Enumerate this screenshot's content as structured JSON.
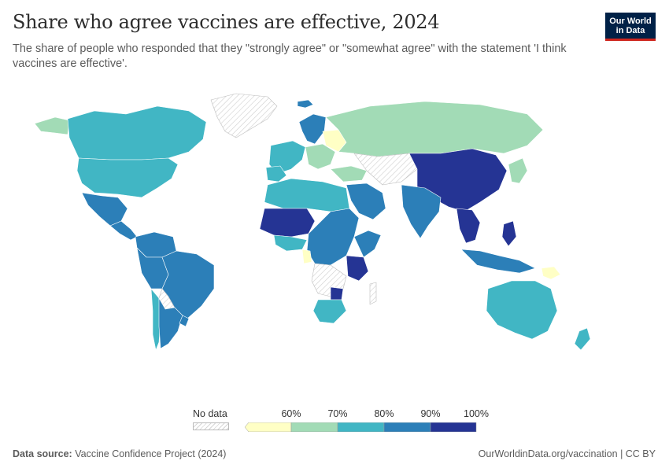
{
  "header": {
    "title": "Share who agree vaccines are effective, 2024",
    "subtitle": "The share of people who responded that they \"strongly agree\" or \"somewhat agree\" with the statement 'I think vaccines are effective'."
  },
  "logo": {
    "line1": "Our World",
    "line2": "in Data"
  },
  "legend": {
    "no_data_label": "No data",
    "ticks": [
      "60%",
      "70%",
      "80%",
      "90%",
      "100%"
    ],
    "bins": [
      {
        "range": "<60%",
        "color": "#ffffc5"
      },
      {
        "range": "60–70%",
        "color": "#a2dbb6"
      },
      {
        "range": "70–80%",
        "color": "#41b6c4"
      },
      {
        "range": "80–90%",
        "color": "#2c7fb8"
      },
      {
        "range": "90–100%",
        "color": "#253494"
      }
    ]
  },
  "footer": {
    "source_label": "Data source:",
    "source_text": "Vaccine Confidence Project (2024)",
    "right_text": "OurWorldinData.org/vaccination | CC BY"
  },
  "colors": {
    "bin_below_60": "#ffffc5",
    "bin_60_70": "#a2dbb6",
    "bin_70_80": "#41b6c4",
    "bin_80_90": "#2c7fb8",
    "bin_90_100": "#253494",
    "no_data": "#e6e6e6"
  }
}
